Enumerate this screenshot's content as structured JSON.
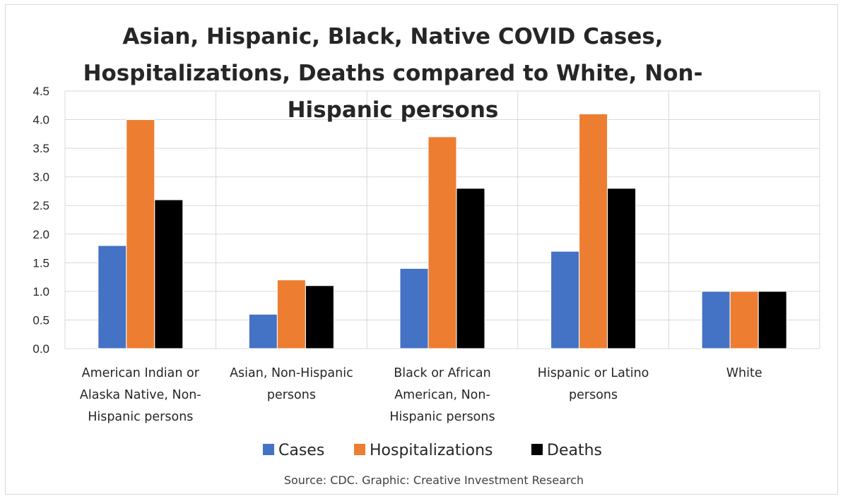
{
  "chart_data": {
    "type": "bar",
    "title": "Asian, Hispanic, Black, Native COVID Cases, Hospitalizations, Deaths compared to White, Non-Hispanic persons",
    "title_lines": [
      "Asian, Hispanic, Black, Native COVID Cases,",
      "Hospitalizations, Deaths compared to White, Non-",
      "Hispanic persons"
    ],
    "categories": [
      "American Indian or Alaska Native, Non-Hispanic persons",
      "Asian, Non-Hispanic persons",
      "Black or African American, Non-Hispanic persons",
      "Hispanic or Latino persons",
      "White"
    ],
    "category_label_lines": [
      [
        "American Indian or",
        "Alaska Native, Non-",
        "Hispanic persons"
      ],
      [
        "Asian, Non-Hispanic",
        "persons"
      ],
      [
        "Black or African",
        "American, Non-",
        "Hispanic persons"
      ],
      [
        "Hispanic or Latino",
        "persons"
      ],
      [
        "White"
      ]
    ],
    "series": [
      {
        "name": "Cases",
        "color": "#4472c4",
        "values": [
          1.8,
          0.6,
          1.4,
          1.7,
          1.0
        ]
      },
      {
        "name": "Hospitalizations",
        "color": "#ed7d31",
        "values": [
          4.0,
          1.2,
          3.7,
          4.1,
          1.0
        ]
      },
      {
        "name": "Deaths",
        "color": "#000000",
        "values": [
          2.6,
          1.1,
          2.8,
          2.8,
          1.0
        ]
      }
    ],
    "y_ticks": [
      "0.0",
      "0.5",
      "1.0",
      "1.5",
      "2.0",
      "2.5",
      "3.0",
      "3.5",
      "4.0",
      "4.5"
    ],
    "ylim": [
      0,
      4.5
    ],
    "xlabel": "",
    "ylabel": "",
    "grid": true,
    "legend_position": "bottom",
    "source": "Source: CDC. Graphic: Creative Investment Research"
  }
}
